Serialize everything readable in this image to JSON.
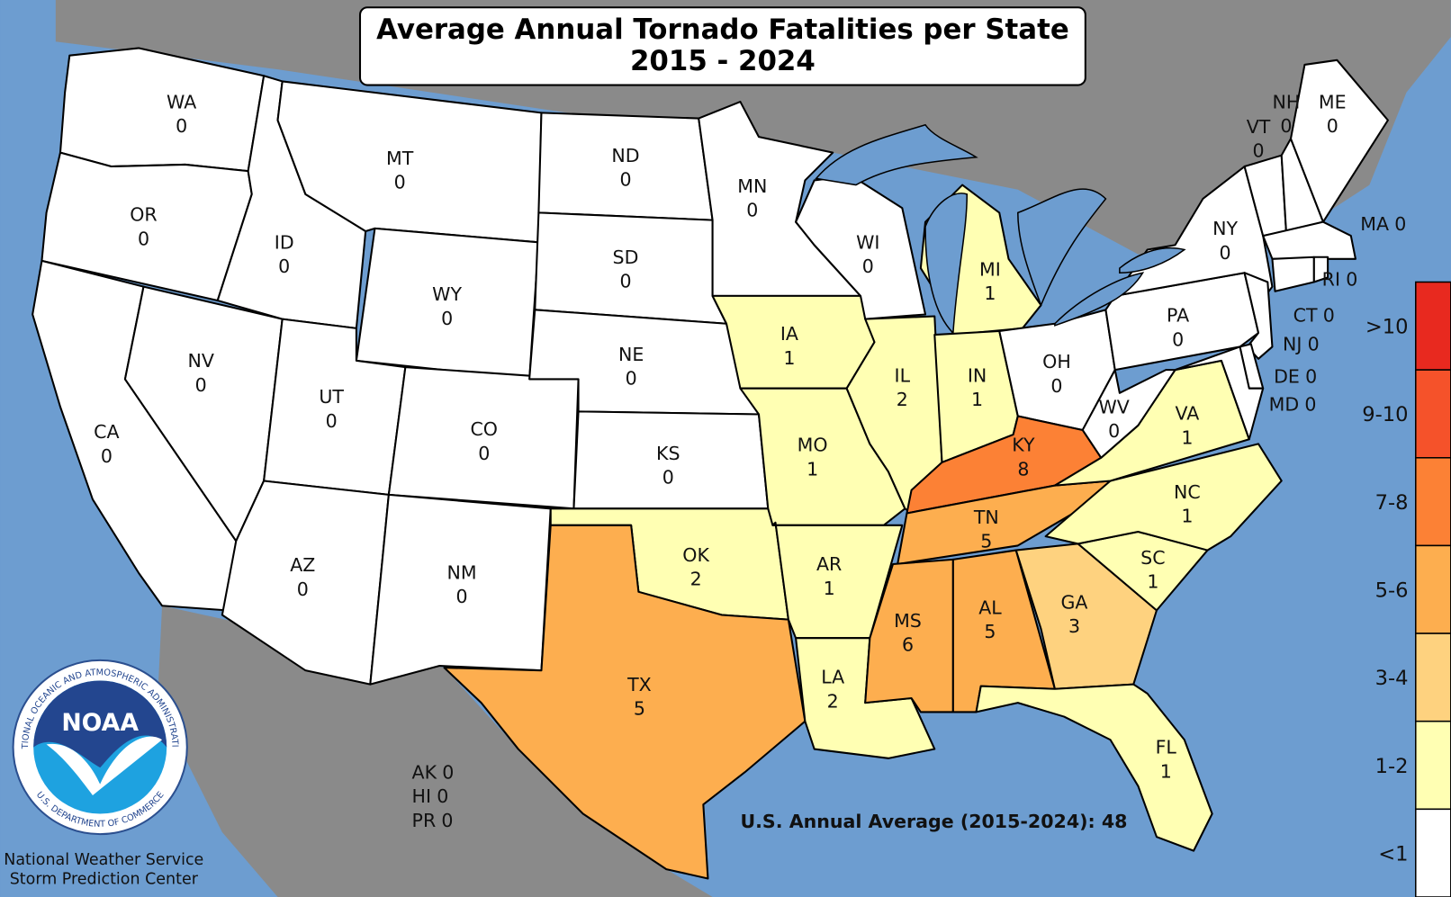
{
  "title": "Average Annual Tornado Fatalities per State",
  "subtitle": "2015 - 2024",
  "states": [
    {
      "name": "WA",
      "value": 0,
      "color": "#ffffff"
    },
    {
      "name": "OR",
      "value": 0,
      "color": "#ffffff"
    },
    {
      "name": "CA",
      "value": 0,
      "color": "#ffffff"
    },
    {
      "name": "NV",
      "value": 0,
      "color": "#ffffff"
    },
    {
      "name": "ID",
      "value": 0,
      "color": "#ffffff"
    },
    {
      "name": "MT",
      "value": 0,
      "color": "#ffffff"
    },
    {
      "name": "WY",
      "value": 0,
      "color": "#ffffff"
    },
    {
      "name": "UT",
      "value": 0,
      "color": "#ffffff"
    },
    {
      "name": "CO",
      "value": 0,
      "color": "#ffffff"
    },
    {
      "name": "AZ",
      "value": 0,
      "color": "#ffffff"
    },
    {
      "name": "NM",
      "value": 0,
      "color": "#ffffff"
    },
    {
      "name": "ND",
      "value": 0,
      "color": "#ffffff"
    },
    {
      "name": "SD",
      "value": 0,
      "color": "#ffffff"
    },
    {
      "name": "NE",
      "value": 0,
      "color": "#ffffff"
    },
    {
      "name": "KS",
      "value": 0,
      "color": "#ffffff"
    },
    {
      "name": "OK",
      "value": 2,
      "color": "#ffffb3"
    },
    {
      "name": "TX",
      "value": 5,
      "color": "#fdae4f"
    },
    {
      "name": "MN",
      "value": 0,
      "color": "#ffffff"
    },
    {
      "name": "IA",
      "value": 1,
      "color": "#ffffb3"
    },
    {
      "name": "MO",
      "value": 1,
      "color": "#ffffb3"
    },
    {
      "name": "AR",
      "value": 1,
      "color": "#ffffb3"
    },
    {
      "name": "LA",
      "value": 2,
      "color": "#ffffb3"
    },
    {
      "name": "WI",
      "value": 0,
      "color": "#ffffff"
    },
    {
      "name": "IL",
      "value": 2,
      "color": "#ffffb3"
    },
    {
      "name": "MI",
      "value": 1,
      "color": "#ffffb3"
    },
    {
      "name": "IN",
      "value": 1,
      "color": "#ffffb3"
    },
    {
      "name": "OH",
      "value": 0,
      "color": "#ffffff"
    },
    {
      "name": "KY",
      "value": 8,
      "color": "#fc8135"
    },
    {
      "name": "TN",
      "value": 5,
      "color": "#fdae4f"
    },
    {
      "name": "MS",
      "value": 6,
      "color": "#fdae4f"
    },
    {
      "name": "AL",
      "value": 5,
      "color": "#fdae4f"
    },
    {
      "name": "GA",
      "value": 3,
      "color": "#fed27f"
    },
    {
      "name": "FL",
      "value": 1,
      "color": "#ffffb3"
    },
    {
      "name": "SC",
      "value": 1,
      "color": "#ffffb3"
    },
    {
      "name": "NC",
      "value": 1,
      "color": "#ffffb3"
    },
    {
      "name": "VA",
      "value": 1,
      "color": "#ffffb3"
    },
    {
      "name": "WV",
      "value": 0,
      "color": "#ffffff"
    },
    {
      "name": "PA",
      "value": 0,
      "color": "#ffffff"
    },
    {
      "name": "NY",
      "value": 0,
      "color": "#ffffff"
    },
    {
      "name": "VT",
      "value": 0,
      "color": "#ffffff"
    },
    {
      "name": "NH",
      "value": 0,
      "color": "#ffffff"
    },
    {
      "name": "ME",
      "value": 0,
      "color": "#ffffff"
    },
    {
      "name": "MA",
      "value": 0,
      "color": "#ffffff"
    },
    {
      "name": "RI",
      "value": 0,
      "color": "#ffffff"
    },
    {
      "name": "CT",
      "value": 0,
      "color": "#ffffff"
    },
    {
      "name": "NJ",
      "value": 0,
      "color": "#ffffff"
    },
    {
      "name": "DE",
      "value": 0,
      "color": "#ffffff"
    },
    {
      "name": "MD",
      "value": 0,
      "color": "#ffffff"
    }
  ],
  "other": [
    {
      "name": "AK",
      "value": 0
    },
    {
      "name": "HI",
      "value": 0
    },
    {
      "name": "PR",
      "value": 0
    }
  ],
  "national_average": "U.S. Annual Average (2015-2024): 48",
  "legend": [
    {
      "label": ">10",
      "color": "#e8291f"
    },
    {
      "label": "9-10",
      "color": "#f5522a"
    },
    {
      "label": "7-8",
      "color": "#fc8135"
    },
    {
      "label": "5-6",
      "color": "#fdae4f"
    },
    {
      "label": "3-4",
      "color": "#fed27f"
    },
    {
      "label": "1-2",
      "color": "#ffffb3"
    },
    {
      "label": "<1",
      "color": "#ffffff"
    }
  ],
  "logo": {
    "text": "NOAA",
    "ring_top": "NATIONAL OCEANIC AND ATMOSPHERIC ADMINISTRATION",
    "ring_bottom": "U.S. DEPARTMENT OF COMMERCE"
  },
  "footer": [
    "National Weather Service",
    "Storm Prediction Center"
  ]
}
